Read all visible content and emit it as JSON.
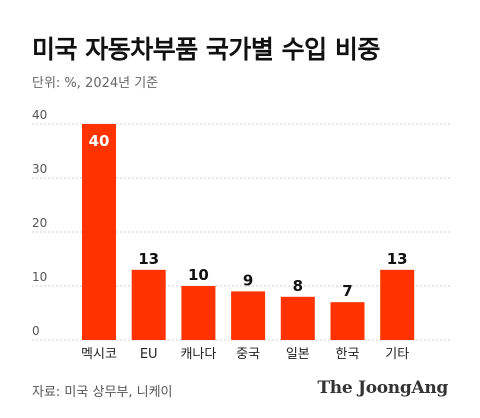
{
  "header": {
    "title": "미국 자동차부품 국가별 수입 비중",
    "subtitle": "단위: %, 2024년 기준"
  },
  "footer": {
    "source": "자료: 미국 상무부, 니케이",
    "logo_text": "The JoongAng"
  },
  "colors": {
    "bar": "#ff3300",
    "grid": "#d0d0d0",
    "tick_text": "#555555",
    "value_text": "#111111",
    "value_text_inside": "#ffffff"
  },
  "chart_data": {
    "type": "bar",
    "title": "",
    "xlabel": "",
    "ylabel": "",
    "categories": [
      "멕시코",
      "EU",
      "캐나다",
      "중국",
      "일본",
      "한국",
      "기타"
    ],
    "values": [
      40,
      13,
      10,
      9,
      8,
      7,
      13
    ],
    "value_labels": [
      "40",
      "13",
      "10",
      "9",
      "8",
      "7",
      "13"
    ],
    "ylim": [
      0,
      40
    ],
    "yticks": [
      0,
      10,
      20,
      30,
      40
    ],
    "ytick_labels": [
      "0",
      "10",
      "20",
      "30",
      "40"
    ],
    "grid": true,
    "legend": "none"
  }
}
